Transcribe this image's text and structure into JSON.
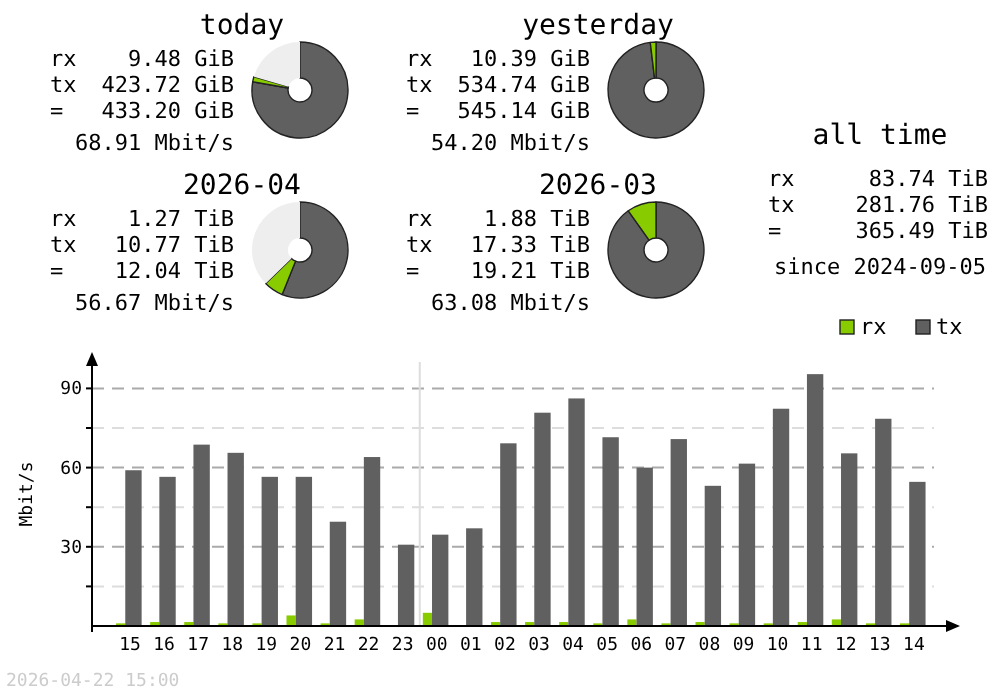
{
  "chart_data": [
    {
      "type": "donut",
      "title": "today",
      "categories": [
        null,
        null,
        null
      ],
      "values": [
        77.73,
        1.74,
        20.53
      ],
      "colors": [
        "#606060",
        "#88cc00",
        "#eeeeee"
      ],
      "annotations": [
        "rx",
        "9.48 GiB",
        "tx",
        "423.72 GiB",
        "=",
        "433.20 GiB",
        "68.91 Mbit/s"
      ]
    },
    {
      "type": "donut",
      "title": "yesterday",
      "categories": [
        null,
        null
      ],
      "values": [
        98.09,
        1.91
      ],
      "colors": [
        "#606060",
        "#88cc00"
      ],
      "annotations": [
        "rx",
        "10.39 GiB",
        "tx",
        "534.74 GiB",
        "=",
        "545.14 GiB",
        "54.20 Mbit/s"
      ]
    },
    {
      "type": "donut",
      "title": "2026-04",
      "categories": [
        null,
        null,
        null
      ],
      "values": [
        56.06,
        6.61,
        37.33
      ],
      "colors": [
        "#606060",
        "#88cc00",
        "#eeeeee"
      ],
      "annotations": [
        "rx",
        "1.27 TiB",
        "tx",
        "10.77 TiB",
        "=",
        "12.04 TiB",
        "56.67 Mbit/s"
      ]
    },
    {
      "type": "donut",
      "title": "2026-03",
      "categories": [
        null,
        null
      ],
      "values": [
        90.21,
        9.79
      ],
      "colors": [
        "#606060",
        "#88cc00"
      ],
      "annotations": [
        "rx",
        "1.88 TiB",
        "tx",
        "17.33 TiB",
        "=",
        "19.21 TiB",
        "63.08 Mbit/s"
      ]
    },
    {
      "type": "other",
      "title": "all time",
      "annotations": [
        "rx",
        "83.74 TiB",
        "tx",
        "281.76 TiB",
        "=",
        "365.49 TiB",
        "since 2024-09-05"
      ]
    },
    {
      "type": "bar",
      "ylabel": "Mbit/s",
      "categories": [
        "15",
        "16",
        "17",
        "18",
        "19",
        "20",
        "21",
        "22",
        "23",
        "00",
        "01",
        "02",
        "03",
        "04",
        "05",
        "06",
        "07",
        "08",
        "09",
        "10",
        "11",
        "12",
        "13",
        "14"
      ],
      "series": [
        {
          "name": "rx",
          "color": "#88cc00",
          "values": [
            1,
            1.5,
            1.5,
            1,
            1,
            4,
            1,
            2.5,
            0,
            5,
            0,
            1.5,
            1.5,
            1.5,
            1,
            2.5,
            1,
            1.5,
            1,
            1,
            1.5,
            2.5,
            1,
            1
          ]
        },
        {
          "name": "tx",
          "color": "#606060",
          "values": [
            59,
            56.5,
            68.7,
            65.6,
            56.5,
            56.5,
            39.5,
            64,
            30.8,
            34.6,
            37,
            69.2,
            80.8,
            86.2,
            71.5,
            60,
            70.8,
            53.1,
            61.5,
            82.3,
            95.4,
            65.4,
            78.5,
            54.6
          ]
        }
      ],
      "ylim": [
        0,
        100
      ],
      "yticks": [
        {
          "value": 15,
          "label": null
        },
        30,
        {
          "value": 45,
          "label": null
        },
        60,
        {
          "value": 75,
          "label": null
        },
        90
      ],
      "grid": "y",
      "legend": "top right",
      "ref_lines": [
        {
          "axis": "x",
          "value": "00",
          "color": "#dddddd"
        }
      ],
      "annotations": [
        "2026-04-22 15:00"
      ]
    }
  ]
}
